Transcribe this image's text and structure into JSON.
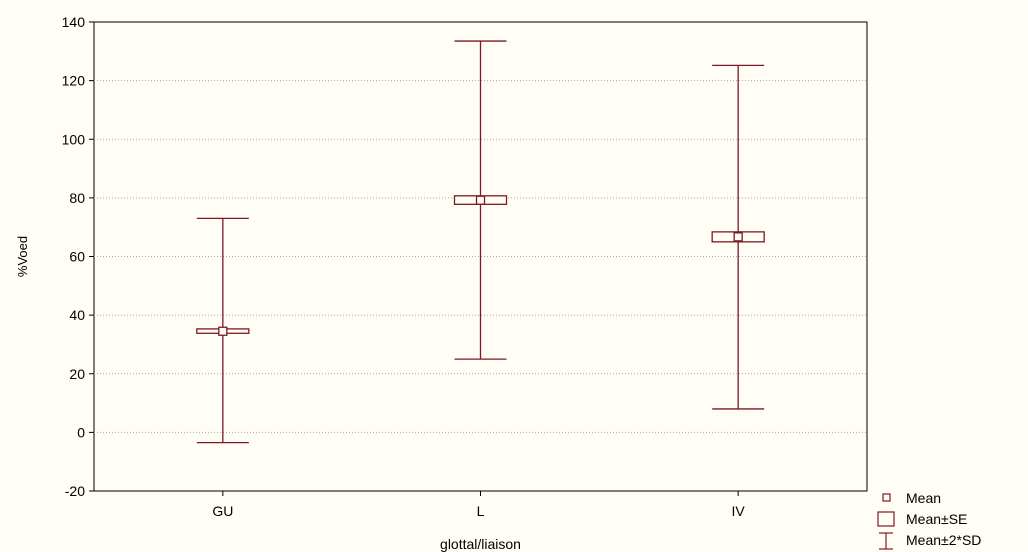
{
  "chart_data": {
    "type": "box",
    "title": "",
    "xlabel": "glottal/liaison",
    "ylabel": "%Voed",
    "ylim": [
      -20,
      140
    ],
    "yticks": [
      -20,
      0,
      20,
      40,
      60,
      80,
      100,
      120,
      140
    ],
    "grid": true,
    "categories": [
      "GU",
      "L",
      "IV"
    ],
    "series": [
      {
        "mean": [
          34.5,
          79.2,
          66.7
        ],
        "se_low": [
          33.8,
          77.8,
          65.0
        ],
        "se_high": [
          35.3,
          80.7,
          68.4
        ],
        "sd2_low": [
          -3.5,
          25.0,
          8.0
        ],
        "sd2_high": [
          73.0,
          133.5,
          125.2
        ]
      }
    ],
    "legend": {
      "position": "bottom-right",
      "entries": [
        "Mean",
        "Mean±SE",
        "Mean±2*SD"
      ]
    },
    "colors": {
      "marks": "#7b1a22",
      "grid": "#a8a8a8",
      "frame": "#000000",
      "background": "#fffdf6"
    }
  }
}
